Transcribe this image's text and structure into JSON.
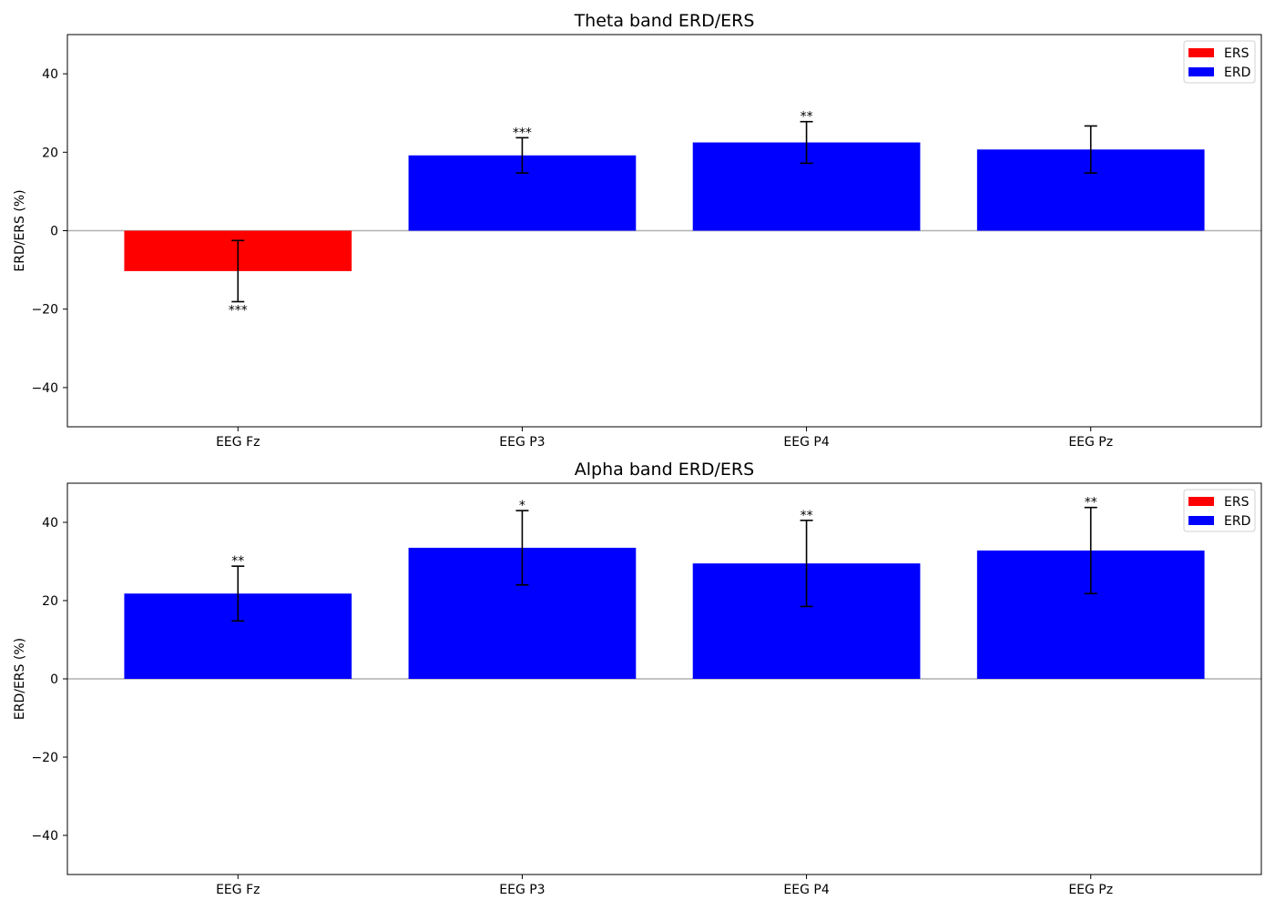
{
  "chart_data": [
    {
      "type": "bar",
      "title": "Theta band ERD/ERS",
      "xlabel": "",
      "ylabel": "ERD/ERS (%)",
      "ylim": [
        -50,
        50
      ],
      "yticks": [
        -40,
        -20,
        0,
        20,
        40
      ],
      "categories": [
        "EEG Fz",
        "EEG P3",
        "EEG P4",
        "EEG Pz"
      ],
      "values": [
        -10.3,
        19.2,
        22.5,
        20.7
      ],
      "errors": [
        7.8,
        4.5,
        5.3,
        6.0
      ],
      "significance": [
        "***",
        "***",
        "**",
        ""
      ],
      "bar_colors": [
        "#ff0000",
        "#0000ff",
        "#0000ff",
        "#0000ff"
      ],
      "zero_line": true,
      "grid": false,
      "legend": {
        "position": "top-right",
        "entries": [
          {
            "label": "ERS",
            "color": "#ff0000"
          },
          {
            "label": "ERD",
            "color": "#0000ff"
          }
        ]
      }
    },
    {
      "type": "bar",
      "title": "Alpha band ERD/ERS",
      "xlabel": "",
      "ylabel": "ERD/ERS (%)",
      "ylim": [
        -50,
        50
      ],
      "yticks": [
        -40,
        -20,
        0,
        20,
        40
      ],
      "categories": [
        "EEG Fz",
        "EEG P3",
        "EEG P4",
        "EEG Pz"
      ],
      "values": [
        21.8,
        33.5,
        29.5,
        32.8
      ],
      "errors": [
        7.0,
        9.5,
        11.0,
        11.0
      ],
      "significance": [
        "**",
        "*",
        "**",
        "**"
      ],
      "bar_colors": [
        "#0000ff",
        "#0000ff",
        "#0000ff",
        "#0000ff"
      ],
      "zero_line": true,
      "grid": false,
      "legend": {
        "position": "top-right",
        "entries": [
          {
            "label": "ERS",
            "color": "#ff0000"
          },
          {
            "label": "ERD",
            "color": "#0000ff"
          }
        ]
      }
    }
  ]
}
